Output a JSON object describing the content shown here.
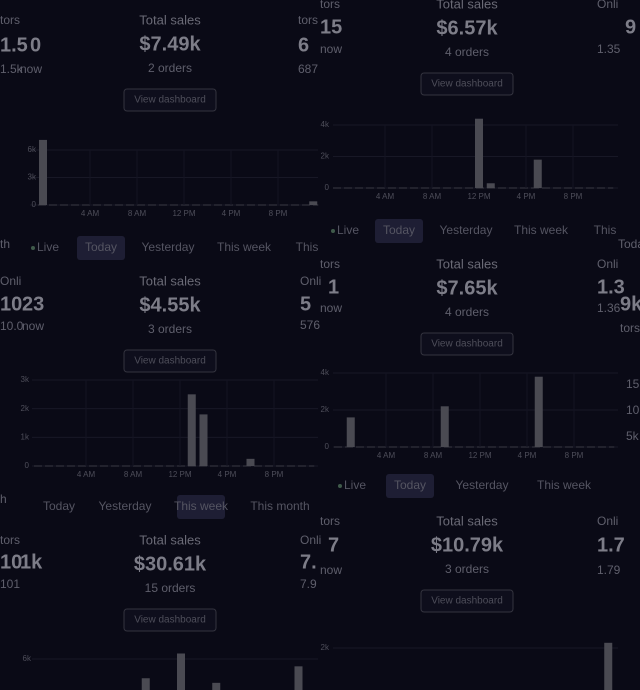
{
  "panels": [
    {
      "title": "Total sales",
      "value": "$7.49k",
      "orders": "2 orders",
      "button": "View dashboard",
      "chart": {
        "ylim": [
          0,
          6000
        ],
        "yticks": [
          0,
          {
            "value": 3000,
            "label": "3k"
          },
          {
            "value": 6000,
            "label": "6k"
          }
        ],
        "xticks": [
          "4 AM",
          "8 AM",
          "12 PM",
          "4 PM",
          "8 PM"
        ],
        "bars": [
          7100,
          0,
          0,
          0,
          0,
          0,
          0,
          0,
          0,
          0,
          0,
          0,
          0,
          0,
          0,
          0,
          0,
          0,
          0,
          0,
          0,
          0,
          0,
          400
        ]
      }
    },
    {
      "title": "Total sales",
      "value": "$4.55k",
      "orders": "3 orders",
      "button": "View dashboard",
      "chart": {
        "ylim": [
          0,
          3000
        ],
        "yticks": [
          0,
          {
            "value": 1000,
            "label": "1k"
          },
          {
            "value": 2000,
            "label": "2k"
          },
          {
            "value": 3000,
            "label": "3k"
          }
        ],
        "xticks": [
          "4 AM",
          "8 AM",
          "12 PM",
          "4 PM",
          "8 PM"
        ],
        "bars": [
          0,
          0,
          0,
          0,
          0,
          0,
          0,
          0,
          0,
          0,
          0,
          0,
          0,
          2500,
          1800,
          0,
          0,
          0,
          250,
          0,
          0,
          0,
          0,
          0
        ]
      }
    },
    {
      "title": "Total sales",
      "value": "$30.61k",
      "orders": "15 orders",
      "button": "View dashboard",
      "chart": {
        "ylim": [
          0,
          6000
        ],
        "yticks": [
          {
            "value": 6000,
            "label": "6k"
          }
        ],
        "xticks": [],
        "bars": [
          0,
          0,
          0,
          0,
          0,
          0,
          0,
          0,
          0,
          3900,
          0,
          0,
          6600,
          0,
          0,
          3400,
          0,
          0,
          0,
          0,
          0,
          0,
          5200,
          0
        ]
      }
    },
    {
      "title": "Total sales",
      "value": "$6.57k",
      "orders": "4 orders",
      "button": "View dashboard",
      "chart": {
        "ylim": [
          0,
          4000
        ],
        "yticks": [
          0,
          {
            "value": 2000,
            "label": "2k"
          },
          {
            "value": 4000,
            "label": "4k"
          }
        ],
        "xticks": [
          "4 AM",
          "8 AM",
          "12 PM",
          "4 PM",
          "8 PM"
        ],
        "bars": [
          0,
          0,
          0,
          0,
          0,
          0,
          0,
          0,
          0,
          0,
          0,
          0,
          4400,
          300,
          0,
          0,
          0,
          1800,
          0,
          0,
          0,
          0,
          0,
          0
        ]
      }
    },
    {
      "title": "Total sales",
      "value": "$7.65k",
      "orders": "4 orders",
      "button": "View dashboard",
      "chart": {
        "ylim": [
          0,
          4000
        ],
        "yticks": [
          0,
          {
            "value": 2000,
            "label": "2k"
          },
          {
            "value": 4000,
            "label": "4k"
          }
        ],
        "xticks": [
          "4 AM",
          "8 AM",
          "12 PM",
          "4 PM",
          "8 PM"
        ],
        "bars": [
          0,
          1600,
          0,
          0,
          0,
          0,
          0,
          0,
          0,
          2200,
          0,
          0,
          0,
          0,
          0,
          0,
          0,
          3800,
          0,
          0,
          0,
          0,
          0,
          0
        ]
      }
    },
    {
      "title": "Total sales",
      "value": "$10.79k",
      "orders": "3 orders",
      "button": "View dashboard",
      "chart": {
        "ylim": [
          0,
          2000
        ],
        "yticks": [
          {
            "value": 2000,
            "label": "2k"
          }
        ],
        "xticks": [],
        "bars": [
          0,
          0,
          0,
          0,
          0,
          0,
          0,
          0,
          0,
          0,
          0,
          0,
          0,
          0,
          0,
          0,
          0,
          0,
          0,
          0,
          0,
          0,
          0,
          2200
        ]
      }
    }
  ],
  "tab_rows": [
    {
      "tabs": [
        "Live",
        "Today",
        "Yesterday",
        "This week",
        "This"
      ],
      "active": 1
    },
    {
      "tabs": [
        "Today",
        "Yesterday",
        "This week",
        "This month"
      ],
      "active": 2
    },
    {
      "tabs": [
        "Live",
        "Today",
        "Yesterday",
        "This week",
        "This"
      ],
      "active": 1
    },
    {
      "tabs": [
        "Live",
        "Today",
        "Yesterday",
        "This week"
      ],
      "active": 1
    }
  ],
  "fragments": [
    "tors",
    "1.5",
    "0",
    "1.5k",
    "now",
    "tors",
    "6",
    "687",
    "Onli",
    "10",
    "23",
    "10.0",
    "now",
    "Onli",
    "5",
    "576",
    "tors",
    "10",
    "1k",
    "101",
    "Onli",
    "7.",
    "7.9",
    "tors",
    "15",
    "now",
    "Onli",
    "9",
    "1.35",
    "tors",
    "1",
    "now",
    "Onli",
    "1.3",
    "1.36",
    "tors",
    "7",
    "now",
    "Onli",
    "1.7",
    "1.79",
    "Toda",
    "9k",
    "tors",
    "15k",
    "10k",
    "5k",
    "h",
    "th"
  ]
}
